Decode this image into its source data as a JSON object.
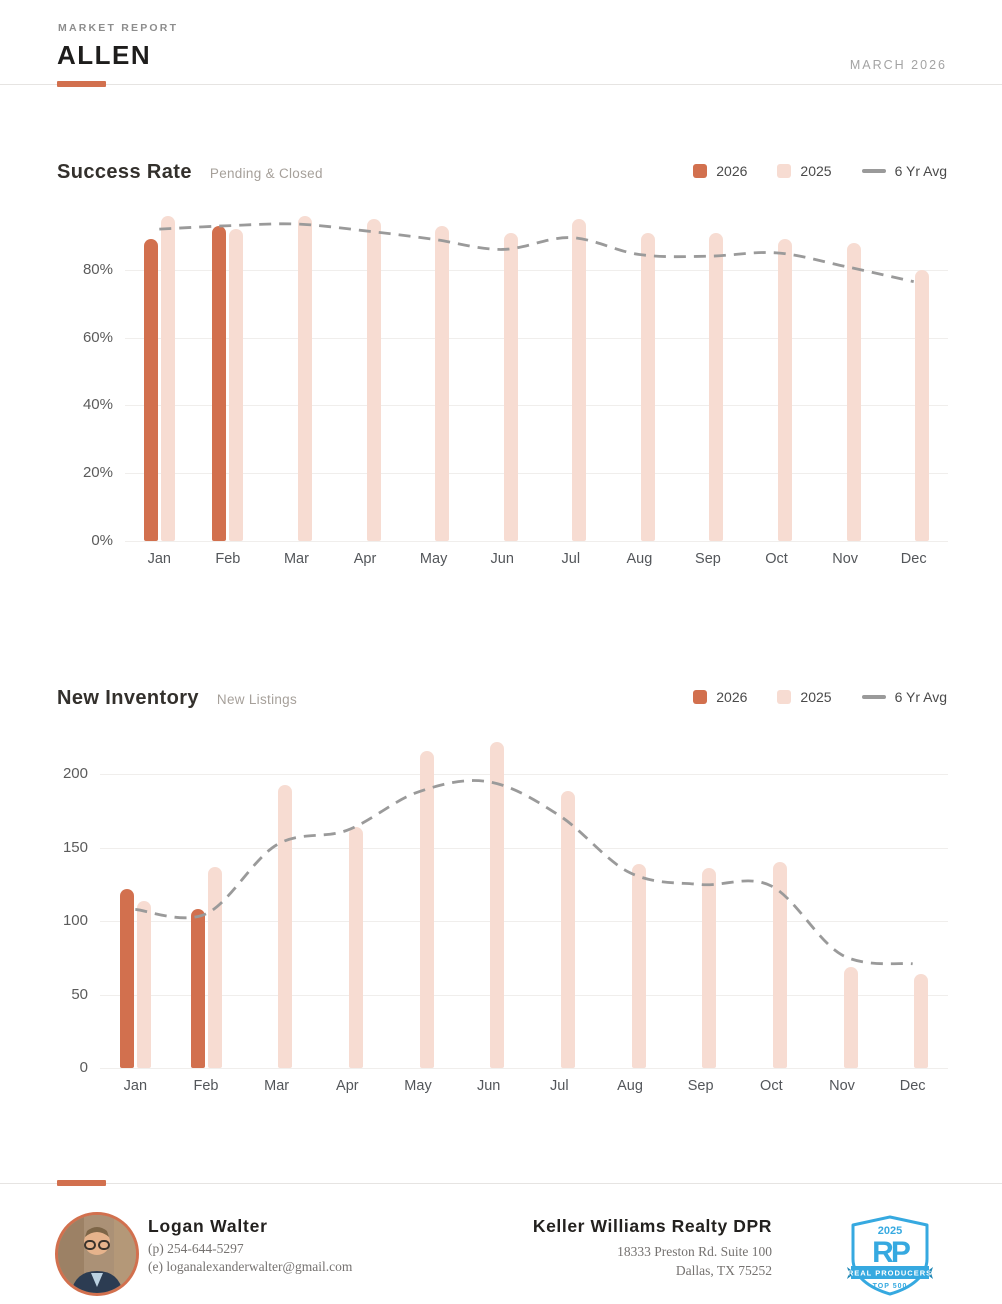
{
  "header": {
    "eyebrow": "MARKET REPORT",
    "title": "ALLEN",
    "date": "MARCH 2026"
  },
  "colors": {
    "accent_2026": "#d2704e",
    "accent_2025": "#f7dcd2",
    "avg_line": "#9a9a9a",
    "badge_blue": "#36a9e0"
  },
  "chart_data": [
    {
      "type": "bar",
      "title": "Success Rate",
      "subtitle": "Pending & Closed",
      "legend": [
        "2026",
        "2025",
        "6 Yr Avg"
      ],
      "legend_position": "top-right",
      "grid": true,
      "categories": [
        "Jan",
        "Feb",
        "Mar",
        "Apr",
        "May",
        "Jun",
        "Jul",
        "Aug",
        "Sep",
        "Oct",
        "Nov",
        "Dec"
      ],
      "yticks": [
        "0%",
        "20%",
        "40%",
        "60%",
        "80%"
      ],
      "ytick_values": [
        0,
        20,
        40,
        60,
        80
      ],
      "ylim": [
        0,
        100
      ],
      "unit": "%",
      "series": [
        {
          "name": "2026",
          "kind": "bar",
          "values": [
            89,
            93,
            null,
            null,
            null,
            null,
            null,
            null,
            null,
            null,
            null,
            null
          ]
        },
        {
          "name": "2025",
          "kind": "bar",
          "values": [
            96,
            92,
            96,
            95,
            93,
            91,
            95,
            91,
            91,
            89,
            88,
            80
          ]
        },
        {
          "name": "6 Yr Avg",
          "kind": "dashed-line",
          "values": [
            92,
            93,
            93.5,
            91.5,
            89,
            86,
            89.5,
            84.5,
            84,
            85,
            81,
            76.5
          ]
        }
      ]
    },
    {
      "type": "bar",
      "title": "New Inventory",
      "subtitle": "New Listings",
      "legend": [
        "2026",
        "2025",
        "6 Yr Avg"
      ],
      "legend_position": "top-right",
      "grid": true,
      "categories": [
        "Jan",
        "Feb",
        "Mar",
        "Apr",
        "May",
        "Jun",
        "Jul",
        "Aug",
        "Sep",
        "Oct",
        "Nov",
        "Dec"
      ],
      "yticks": [
        "0",
        "50",
        "100",
        "150",
        "200"
      ],
      "ytick_values": [
        0,
        50,
        100,
        150,
        200
      ],
      "ylim": [
        0,
        230
      ],
      "unit": "listings",
      "series": [
        {
          "name": "2026",
          "kind": "bar",
          "values": [
            122,
            108,
            null,
            null,
            null,
            null,
            null,
            null,
            null,
            null,
            null,
            null
          ]
        },
        {
          "name": "2025",
          "kind": "bar",
          "values": [
            114,
            137,
            193,
            164,
            216,
            222,
            189,
            139,
            136,
            140,
            69,
            64
          ]
        },
        {
          "name": "6 Yr Avg",
          "kind": "dashed-line",
          "values": [
            108,
            105,
            152,
            162,
            188,
            195,
            172,
            133,
            125,
            124,
            77,
            71
          ]
        }
      ]
    }
  ],
  "footer": {
    "agent": {
      "name": "Logan Walter",
      "phone": "(p) 254-644-5297",
      "email": "(e) loganalexanderwalter@gmail.com"
    },
    "office": {
      "name": "Keller Williams Realty DPR",
      "address1": "18333 Preston Rd. Suite 100",
      "address2": "Dallas, TX 75252"
    },
    "badge": {
      "year": "2025",
      "initials": "RP",
      "banner": "REAL PRODUCERS",
      "tier": "TOP 500"
    }
  }
}
